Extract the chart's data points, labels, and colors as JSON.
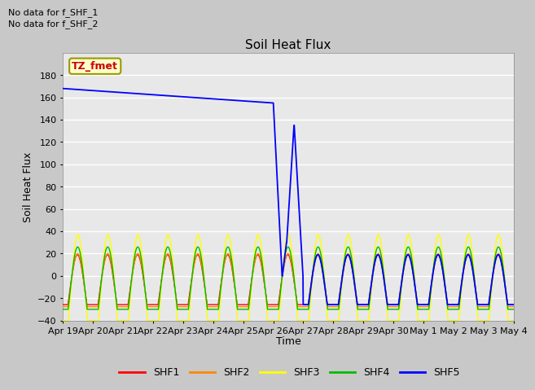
{
  "title": "Soil Heat Flux",
  "xlabel": "Time",
  "ylabel": "Soil Heat Flux",
  "ylim": [
    -40,
    200
  ],
  "yticks": [
    -40,
    -20,
    0,
    20,
    40,
    60,
    80,
    100,
    120,
    140,
    160,
    180
  ],
  "text_no_data": [
    "No data for f_SHF_1",
    "No data for f_SHF_2"
  ],
  "legend_label": "TZ_fmet",
  "shf1_color": "#ff0000",
  "shf2_color": "#ff8800",
  "shf3_color": "#ffff00",
  "shf4_color": "#00bb00",
  "shf5_color": "#0000ff",
  "fig_bg": "#c8c8c8",
  "plot_bg": "#e8e8e8",
  "date_labels": [
    "Apr 19",
    "Apr 20",
    "Apr 21",
    "Apr 22",
    "Apr 23",
    "Apr 24",
    "Apr 25",
    "Apr 26",
    "Apr 27",
    "Apr 28",
    "Apr 29",
    "Apr 30",
    "May 1",
    "May 2",
    "May 3",
    "May 4"
  ]
}
